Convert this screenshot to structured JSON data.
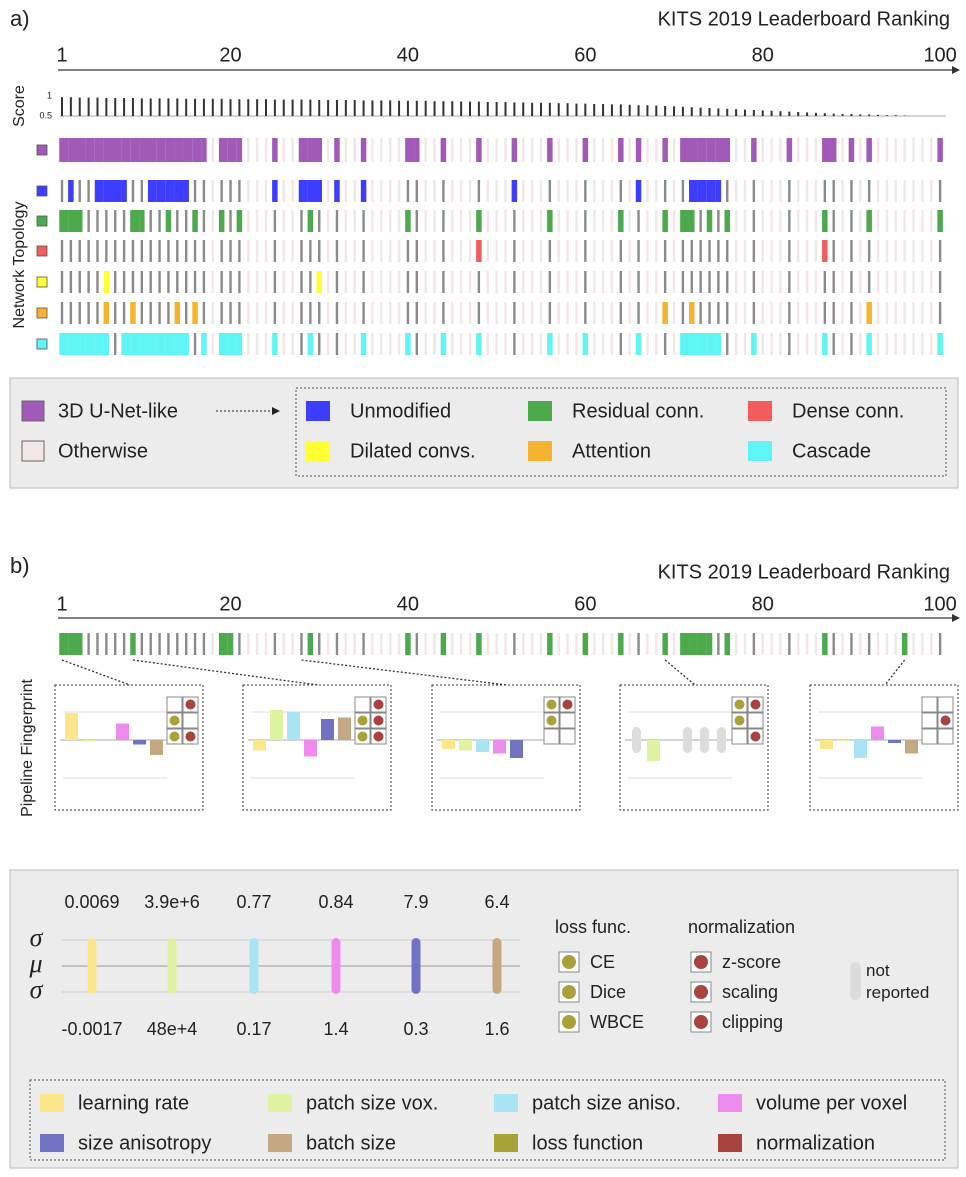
{
  "panel_a": {
    "label": "a)",
    "title": "KITS 2019 Leaderboard Ranking",
    "axis_ticks": [
      1,
      20,
      40,
      60,
      80,
      100
    ],
    "score_label": "Score",
    "score_ticks": [
      1,
      0.5
    ],
    "score_lim": [
      0.5,
      1
    ],
    "scores": [
      0.97,
      0.97,
      0.96,
      0.96,
      0.96,
      0.95,
      0.95,
      0.95,
      0.95,
      0.94,
      0.94,
      0.94,
      0.94,
      0.94,
      0.93,
      0.93,
      0.93,
      0.93,
      0.93,
      0.92,
      0.92,
      0.92,
      0.92,
      0.92,
      0.91,
      0.91,
      0.91,
      0.91,
      0.91,
      0.9,
      0.9,
      0.9,
      0.9,
      0.9,
      0.89,
      0.89,
      0.89,
      0.89,
      0.88,
      0.88,
      0.88,
      0.88,
      0.87,
      0.87,
      0.87,
      0.86,
      0.86,
      0.86,
      0.85,
      0.85,
      0.85,
      0.84,
      0.84,
      0.83,
      0.83,
      0.83,
      0.82,
      0.82,
      0.81,
      0.81,
      0.8,
      0.8,
      0.79,
      0.79,
      0.78,
      0.77,
      0.77,
      0.76,
      0.75,
      0.74,
      0.73,
      0.72,
      0.71,
      0.7,
      0.69,
      0.68,
      0.67,
      0.66,
      0.65,
      0.64,
      0.63,
      0.62,
      0.61,
      0.6,
      0.59,
      0.58,
      0.57,
      0.56,
      0.55,
      0.55,
      0.54,
      0.54,
      0.53,
      0.52,
      0.52,
      0.51,
      0.5,
      0.5,
      0.5,
      0.5
    ],
    "topology_label": "Network Topology",
    "rows": [
      {
        "name": "3D U-Net-like",
        "color": "#a25ab8",
        "ranks": [
          1,
          2,
          3,
          4,
          5,
          6,
          7,
          8,
          9,
          10,
          11,
          12,
          13,
          14,
          15,
          16,
          17,
          19,
          20,
          21,
          25,
          28,
          29,
          30,
          32,
          35,
          40,
          41,
          44,
          48,
          52,
          56,
          60,
          64,
          66,
          69,
          71,
          72,
          73,
          74,
          75,
          76,
          79,
          83,
          87,
          88,
          90,
          92,
          100
        ]
      },
      {
        "name": "Unmodified",
        "color": "#3d3dff",
        "ranks": [
          2,
          5,
          6,
          7,
          8,
          11,
          12,
          13,
          14,
          15,
          25,
          28,
          29,
          30,
          32,
          35,
          52,
          66,
          72,
          73,
          74,
          75
        ]
      },
      {
        "name": "Residual conn.",
        "color": "#4caa4c",
        "ranks": [
          1,
          2,
          3,
          9,
          10,
          13,
          16,
          19,
          21,
          29,
          40,
          48,
          56,
          64,
          69,
          71,
          72,
          74,
          76,
          87,
          92,
          100
        ]
      },
      {
        "name": "Dense conn.",
        "color": "#f25c5c",
        "ranks": [
          48,
          87
        ]
      },
      {
        "name": "Dilated convs.",
        "color": "#ffff33",
        "ranks": [
          6,
          30
        ]
      },
      {
        "name": "Attention",
        "color": "#f5b330",
        "ranks": [
          6,
          9,
          14,
          16,
          69,
          72,
          92
        ]
      },
      {
        "name": "Cascade",
        "color": "#5ff5f5",
        "ranks": [
          1,
          2,
          3,
          4,
          5,
          6,
          8,
          9,
          10,
          11,
          12,
          13,
          14,
          15,
          17,
          19,
          20,
          21,
          25,
          29,
          35,
          40,
          44,
          48,
          56,
          60,
          66,
          71,
          72,
          73,
          74,
          75,
          79,
          87,
          92,
          100
        ]
      }
    ],
    "other": {
      "name": "Otherwise",
      "color": "#f2e6e6"
    }
  },
  "panel_b": {
    "label": "b)",
    "title": "KITS 2019 Leaderboard Ranking",
    "axis_ticks": [
      1,
      20,
      40,
      60,
      80,
      100
    ],
    "row_color": "#4caa4c",
    "row_ranks": [
      1,
      2,
      3,
      9,
      19,
      20,
      29,
      40,
      44,
      48,
      56,
      60,
      64,
      69,
      71,
      72,
      73,
      74,
      76,
      87,
      96
    ],
    "ylabel": "Pipeline Fingerprint",
    "fingerprints": [
      {
        "rank": 1,
        "values": [
          0.9,
          -0.05,
          0.03,
          0.55,
          -0.15,
          -0.5
        ],
        "loss": [
          0,
          1,
          1
        ],
        "norm": [
          1,
          0,
          1
        ]
      },
      {
        "rank": 9,
        "values": [
          -0.35,
          1.0,
          0.95,
          -0.55,
          0.7,
          0.75
        ],
        "loss": [
          0,
          1,
          1
        ],
        "norm": [
          1,
          1,
          1
        ]
      },
      {
        "rank": 28,
        "values": [
          -0.3,
          -0.35,
          -0.4,
          -0.45,
          -0.6,
          0
        ],
        "loss": [
          1,
          1,
          0
        ],
        "norm": [
          1,
          0,
          0
        ]
      },
      {
        "rank": 69,
        "values": [
          null,
          -0.7,
          0.03,
          null,
          null,
          null
        ],
        "loss": [
          1,
          1,
          0
        ],
        "norm": [
          1,
          0,
          1
        ]
      },
      {
        "rank": 96,
        "values": [
          -0.3,
          -0.03,
          -0.6,
          0.45,
          -0.1,
          -0.45
        ],
        "loss": [
          0,
          0,
          0
        ],
        "norm": [
          0,
          1,
          0
        ]
      }
    ],
    "sigma_labels": [
      "σ",
      "μ",
      "σ"
    ],
    "parameters": [
      {
        "name": "learning rate",
        "color": "#fbe789",
        "hi": "0.0069",
        "lo": "-0.0017"
      },
      {
        "name": "patch size vox.",
        "color": "#def3a0",
        "hi": "3.9e+6",
        "lo": "48e+4"
      },
      {
        "name": "patch size aniso.",
        "color": "#a8e4f4",
        "hi": "0.77",
        "lo": "0.17"
      },
      {
        "name": "volume per voxel",
        "color": "#ee8cee",
        "hi": "0.84",
        "lo": "1.4"
      },
      {
        "name": "size anisotropy",
        "color": "#7272c2",
        "hi": "7.9",
        "lo": "0.3"
      },
      {
        "name": "batch size",
        "color": "#c4a882",
        "hi": "6.4",
        "lo": "1.6"
      },
      {
        "name": "loss function",
        "color": "#a9a23a"
      },
      {
        "name": "normalization",
        "color": "#a8433f"
      }
    ],
    "loss_title": "loss func.",
    "loss_items": [
      "CE",
      "Dice",
      "WBCE"
    ],
    "norm_title": "normalization",
    "norm_items": [
      "z-score",
      "scaling",
      "clipping"
    ],
    "not_reported": "not reported"
  }
}
